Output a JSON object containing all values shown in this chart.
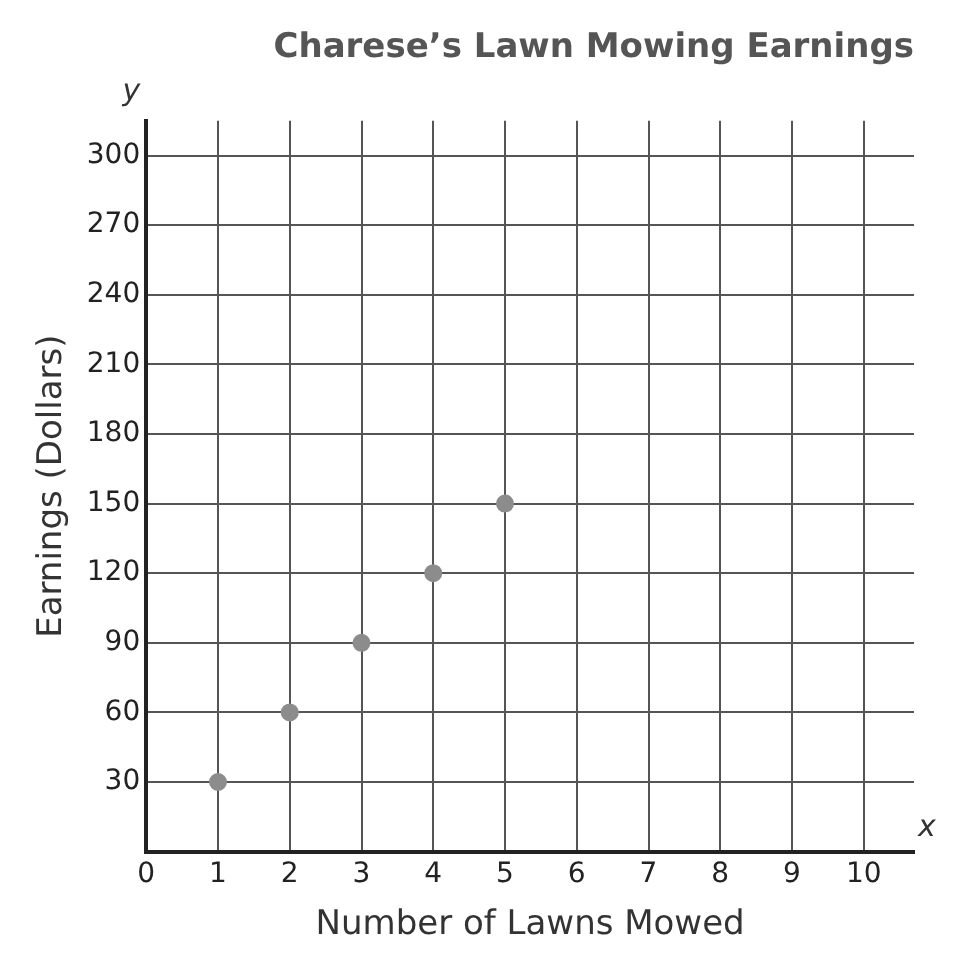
{
  "chart_data": {
    "type": "scatter",
    "title": "Charese’s Lawn Mowing Earnings",
    "xlabel": "Number of Lawns Mowed",
    "ylabel": "Earnings (Dollars)",
    "annotations": [
      "y",
      "x"
    ],
    "x": [
      1,
      2,
      3,
      4,
      5
    ],
    "series": [
      {
        "color": "#8c8c8c",
        "values": [
          30,
          60,
          90,
          120,
          150
        ]
      }
    ],
    "xlim": [
      0,
      10.7
    ],
    "ylim": [
      0,
      315
    ],
    "xticks": [
      0,
      1,
      2,
      3,
      4,
      5,
      6,
      7,
      8,
      9,
      10
    ],
    "yticks": [
      {
        "value": 0,
        "label": null
      },
      30,
      60,
      90,
      120,
      150,
      180,
      210,
      240,
      270,
      300
    ],
    "grid": true,
    "legend": false,
    "marker": "circle"
  }
}
